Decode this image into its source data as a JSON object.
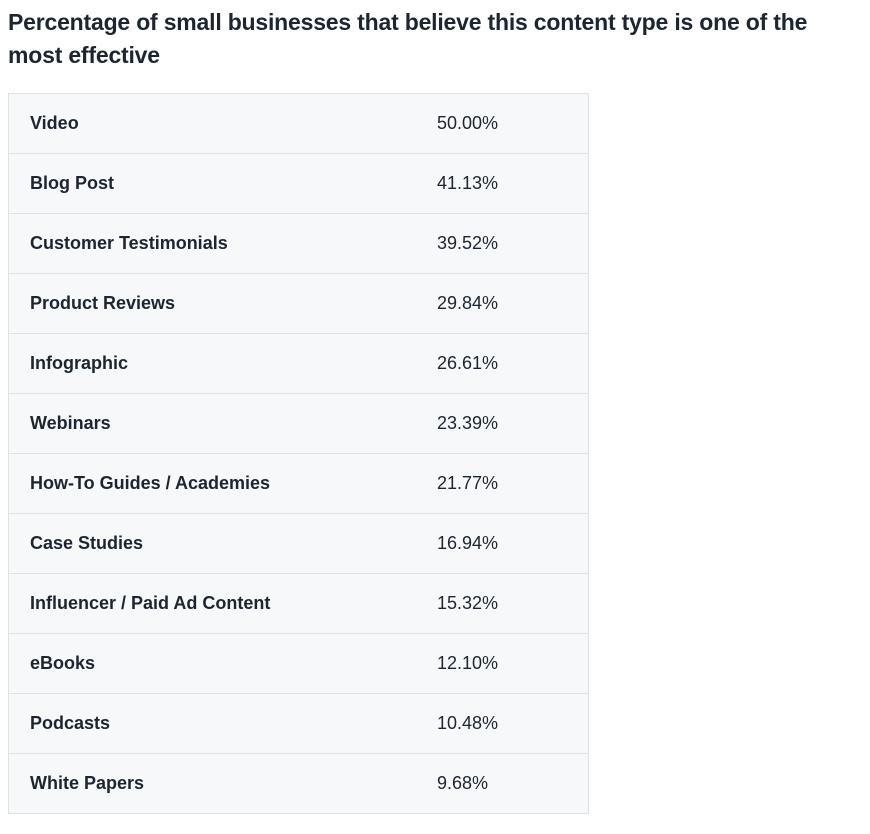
{
  "chart_data": {
    "type": "table",
    "title": "Percentage of small businesses that believe this content type is one of the most effective",
    "rows": [
      {
        "label": "Video",
        "value": 50.0,
        "display": "50.00%"
      },
      {
        "label": "Blog Post",
        "value": 41.13,
        "display": "41.13%"
      },
      {
        "label": "Customer Testimonials",
        "value": 39.52,
        "display": "39.52%"
      },
      {
        "label": "Product Reviews",
        "value": 29.84,
        "display": "29.84%"
      },
      {
        "label": "Infographic",
        "value": 26.61,
        "display": "26.61%"
      },
      {
        "label": "Webinars",
        "value": 23.39,
        "display": "23.39%"
      },
      {
        "label": "How-To Guides / Academies",
        "value": 21.77,
        "display": "21.77%"
      },
      {
        "label": "Case Studies",
        "value": 16.94,
        "display": "16.94%"
      },
      {
        "label": "Influencer / Paid Ad Content",
        "value": 15.32,
        "display": "15.32%"
      },
      {
        "label": "eBooks",
        "value": 12.1,
        "display": "12.10%"
      },
      {
        "label": "Podcasts",
        "value": 10.48,
        "display": "10.48%"
      },
      {
        "label": "White Papers",
        "value": 9.68,
        "display": "9.68%"
      }
    ]
  }
}
